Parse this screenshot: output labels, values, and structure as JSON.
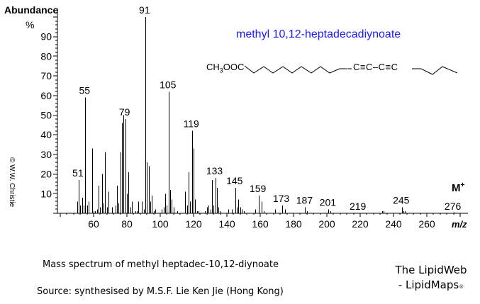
{
  "chart_data": {
    "type": "bar",
    "title": "methyl 10,12-heptadecadiynoate",
    "xlabel": "m/z",
    "ylabel": "Abundance",
    "ylabel_unit": "%",
    "xlim": [
      40,
      280
    ],
    "ylim": [
      0,
      100
    ],
    "xticks": [
      60,
      80,
      100,
      120,
      140,
      160,
      180,
      200,
      220,
      240,
      260
    ],
    "yticks": [
      10,
      20,
      30,
      40,
      50,
      60,
      70,
      80,
      90
    ],
    "grid": false,
    "peaks": [
      {
        "mz": 50,
        "ab": 6
      },
      {
        "mz": 51,
        "ab": 17
      },
      {
        "mz": 52,
        "ab": 4
      },
      {
        "mz": 53,
        "ab": 8
      },
      {
        "mz": 54,
        "ab": 4
      },
      {
        "mz": 55,
        "ab": 59
      },
      {
        "mz": 56,
        "ab": 4
      },
      {
        "mz": 57,
        "ab": 6
      },
      {
        "mz": 59,
        "ab": 33
      },
      {
        "mz": 60,
        "ab": 1
      },
      {
        "mz": 61,
        "ab": 1
      },
      {
        "mz": 62,
        "ab": 2
      },
      {
        "mz": 63,
        "ab": 14
      },
      {
        "mz": 64,
        "ab": 3
      },
      {
        "mz": 65,
        "ab": 20
      },
      {
        "mz": 66,
        "ab": 5
      },
      {
        "mz": 67,
        "ab": 31
      },
      {
        "mz": 68,
        "ab": 3
      },
      {
        "mz": 69,
        "ab": 11
      },
      {
        "mz": 71,
        "ab": 3
      },
      {
        "mz": 73,
        "ab": 4
      },
      {
        "mz": 74,
        "ab": 14
      },
      {
        "mz": 75,
        "ab": 5
      },
      {
        "mz": 76,
        "ab": 31
      },
      {
        "mz": 77,
        "ab": 46
      },
      {
        "mz": 78,
        "ab": 50
      },
      {
        "mz": 79,
        "ab": 48
      },
      {
        "mz": 80,
        "ab": 10
      },
      {
        "mz": 81,
        "ab": 21
      },
      {
        "mz": 82,
        "ab": 3
      },
      {
        "mz": 83,
        "ab": 6
      },
      {
        "mz": 85,
        "ab": 1
      },
      {
        "mz": 86,
        "ab": 1
      },
      {
        "mz": 87,
        "ab": 6
      },
      {
        "mz": 89,
        "ab": 6
      },
      {
        "mz": 90,
        "ab": 2
      },
      {
        "mz": 91,
        "ab": 100
      },
      {
        "mz": 92,
        "ab": 26
      },
      {
        "mz": 93,
        "ab": 24
      },
      {
        "mz": 94,
        "ab": 6
      },
      {
        "mz": 95,
        "ab": 9
      },
      {
        "mz": 96,
        "ab": 1
      },
      {
        "mz": 97,
        "ab": 2
      },
      {
        "mz": 101,
        "ab": 2
      },
      {
        "mz": 102,
        "ab": 3
      },
      {
        "mz": 103,
        "ab": 10
      },
      {
        "mz": 104,
        "ab": 4
      },
      {
        "mz": 105,
        "ab": 62
      },
      {
        "mz": 106,
        "ab": 12
      },
      {
        "mz": 107,
        "ab": 7
      },
      {
        "mz": 108,
        "ab": 3
      },
      {
        "mz": 110,
        "ab": 1
      },
      {
        "mz": 115,
        "ab": 11
      },
      {
        "mz": 116,
        "ab": 4
      },
      {
        "mz": 117,
        "ab": 21
      },
      {
        "mz": 118,
        "ab": 6
      },
      {
        "mz": 119,
        "ab": 42
      },
      {
        "mz": 120,
        "ab": 33
      },
      {
        "mz": 121,
        "ab": 7
      },
      {
        "mz": 122,
        "ab": 1
      },
      {
        "mz": 123,
        "ab": 1
      },
      {
        "mz": 127,
        "ab": 1
      },
      {
        "mz": 128,
        "ab": 3
      },
      {
        "mz": 129,
        "ab": 4
      },
      {
        "mz": 130,
        "ab": 2
      },
      {
        "mz": 131,
        "ab": 17
      },
      {
        "mz": 132,
        "ab": 4
      },
      {
        "mz": 133,
        "ab": 18
      },
      {
        "mz": 134,
        "ab": 13
      },
      {
        "mz": 135,
        "ab": 3
      },
      {
        "mz": 136,
        "ab": 1
      },
      {
        "mz": 141,
        "ab": 2
      },
      {
        "mz": 143,
        "ab": 2
      },
      {
        "mz": 145,
        "ab": 13
      },
      {
        "mz": 146,
        "ab": 3
      },
      {
        "mz": 147,
        "ab": 7
      },
      {
        "mz": 148,
        "ab": 3
      },
      {
        "mz": 149,
        "ab": 2
      },
      {
        "mz": 150,
        "ab": 1
      },
      {
        "mz": 157,
        "ab": 2
      },
      {
        "mz": 159,
        "ab": 9
      },
      {
        "mz": 161,
        "ab": 6
      },
      {
        "mz": 162,
        "ab": 1
      },
      {
        "mz": 169,
        "ab": 2
      },
      {
        "mz": 173,
        "ab": 4
      },
      {
        "mz": 175,
        "ab": 2
      },
      {
        "mz": 187,
        "ab": 3
      },
      {
        "mz": 188,
        "ab": 1
      },
      {
        "mz": 201,
        "ab": 2
      },
      {
        "mz": 202,
        "ab": 1
      },
      {
        "mz": 233,
        "ab": 1
      },
      {
        "mz": 234,
        "ab": 1
      },
      {
        "mz": 245,
        "ab": 3
      },
      {
        "mz": 246,
        "ab": 1
      },
      {
        "mz": 247,
        "ab": 1
      },
      {
        "mz": 276,
        "ab": 0.5
      }
    ],
    "peak_labels": [
      {
        "mz": 51,
        "label": "51"
      },
      {
        "mz": 55,
        "label": "55"
      },
      {
        "mz": 79,
        "label": "79"
      },
      {
        "mz": 91,
        "label": "91"
      },
      {
        "mz": 105,
        "label": "105"
      },
      {
        "mz": 119,
        "label": "119"
      },
      {
        "mz": 133,
        "label": "133"
      },
      {
        "mz": 145,
        "label": "145"
      },
      {
        "mz": 159,
        "label": "159"
      },
      {
        "mz": 173,
        "label": "173"
      },
      {
        "mz": 187,
        "label": "187"
      },
      {
        "mz": 201,
        "label": "201"
      },
      {
        "mz": 219,
        "label": "219"
      },
      {
        "mz": 245,
        "label": "245"
      },
      {
        "mz": 276,
        "label": "276"
      }
    ],
    "annotations": [
      "M+"
    ]
  },
  "labels": {
    "ylabel": "Abundance",
    "ylabel_unit": "%",
    "xlabel": "m/z",
    "molecular_ion": "M",
    "molecular_ion_sup": "+",
    "compound_title": "methyl 10,12-heptadecadiynoate",
    "structure_head": "CH",
    "structure_sub": "3",
    "structure_tail": "OOC",
    "structure_triple": "C≡C–C≡C",
    "copyright": "© W.W. Christie",
    "caption": "Mass spectrum of methyl heptadec-10,12-diynoate",
    "source": "Source:  synthesised by M.S.F. Lie Ken Jie (Hong Kong)",
    "brand_line1": "The LipidWeb",
    "brand_line2": "- LipidMaps",
    "brand_reg": "®"
  },
  "colors": {
    "title": "#1a1aff",
    "ink": "#000000"
  }
}
